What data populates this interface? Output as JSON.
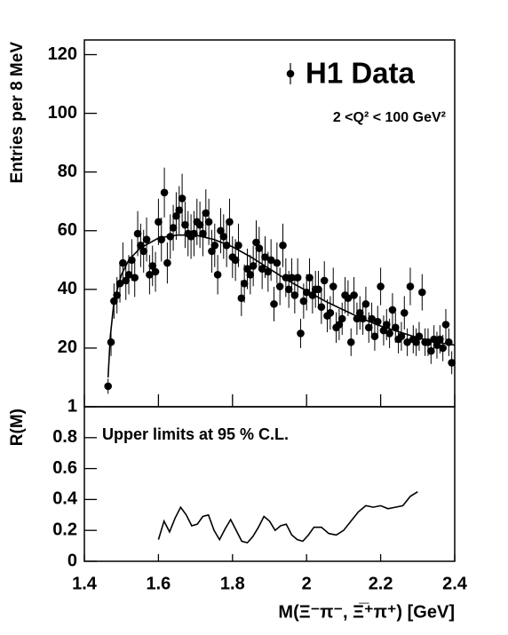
{
  "chart_data": [
    {
      "type": "scatter",
      "ylabel": "Entries per 8 MeV",
      "annotation": "2 <Q² < 100 GeV²",
      "legend": "top-right",
      "xlim": [
        1.4,
        2.4
      ],
      "xticks": [
        1.4,
        1.6,
        1.8,
        2,
        2.2,
        2.4
      ],
      "ylim": [
        0,
        125
      ],
      "yticks": [
        20,
        40,
        60,
        80,
        100,
        120
      ],
      "series": [
        {
          "name": "H1 Data",
          "color": "#000000",
          "x": [
            1.464,
            1.472,
            1.48,
            1.488,
            1.496,
            1.504,
            1.512,
            1.52,
            1.528,
            1.536,
            1.544,
            1.552,
            1.56,
            1.568,
            1.576,
            1.584,
            1.592,
            1.6,
            1.608,
            1.616,
            1.624,
            1.632,
            1.64,
            1.648,
            1.656,
            1.664,
            1.672,
            1.68,
            1.688,
            1.696,
            1.704,
            1.712,
            1.72,
            1.728,
            1.736,
            1.744,
            1.752,
            1.76,
            1.768,
            1.776,
            1.784,
            1.792,
            1.8,
            1.808,
            1.816,
            1.824,
            1.832,
            1.84,
            1.848,
            1.856,
            1.864,
            1.872,
            1.88,
            1.888,
            1.896,
            1.904,
            1.912,
            1.92,
            1.928,
            1.936,
            1.944,
            1.952,
            1.96,
            1.968,
            1.976,
            1.984,
            1.992,
            2.0,
            2.008,
            2.016,
            2.024,
            2.032,
            2.04,
            2.048,
            2.056,
            2.064,
            2.072,
            2.08,
            2.088,
            2.096,
            2.104,
            2.112,
            2.12,
            2.128,
            2.136,
            2.144,
            2.152,
            2.16,
            2.168,
            2.176,
            2.184,
            2.192,
            2.2,
            2.208,
            2.216,
            2.224,
            2.232,
            2.24,
            2.248,
            2.256,
            2.264,
            2.272,
            2.28,
            2.288,
            2.296,
            2.304,
            2.312,
            2.32,
            2.328,
            2.336,
            2.344,
            2.352,
            2.36,
            2.368,
            2.376,
            2.384,
            2.392
          ],
          "values": [
            7,
            22,
            36,
            38,
            42,
            49,
            43,
            45,
            50,
            44,
            59,
            55,
            53,
            57,
            45,
            48,
            46,
            63,
            57,
            73,
            49,
            58,
            61,
            65,
            67,
            71,
            62,
            59,
            58,
            59,
            63,
            62,
            59,
            66,
            63,
            53,
            55,
            45,
            60,
            58,
            55,
            63,
            51,
            50,
            55,
            37,
            42,
            47,
            45,
            48,
            56,
            54,
            47,
            51,
            46,
            50,
            35,
            49,
            41,
            55,
            44,
            40,
            44,
            38,
            44,
            25,
            36,
            39,
            44,
            38,
            40,
            40,
            34,
            43,
            31,
            32,
            41,
            27,
            28,
            30,
            38,
            37,
            22,
            38,
            30,
            32,
            30,
            35,
            27,
            30,
            24,
            29,
            41,
            26,
            28,
            25,
            33,
            27,
            23,
            24,
            32,
            22,
            41,
            23,
            22,
            24,
            39,
            22,
            22,
            19,
            23,
            21,
            23,
            20,
            28,
            22,
            15
          ],
          "errors": [
            2.6,
            4.7,
            6,
            6.2,
            6.5,
            7,
            6.6,
            6.7,
            7.1,
            6.6,
            7.7,
            7.4,
            7.3,
            7.5,
            6.7,
            6.9,
            6.8,
            7.9,
            7.5,
            8.5,
            7,
            7.6,
            7.8,
            8.1,
            8.2,
            8.4,
            7.9,
            7.7,
            7.6,
            7.7,
            7.9,
            7.9,
            7.7,
            8.1,
            7.9,
            7.3,
            7.4,
            6.7,
            7.7,
            7.6,
            7.4,
            7.9,
            7.1,
            7.1,
            7.4,
            6.1,
            6.5,
            6.9,
            6.7,
            6.9,
            7.5,
            7.3,
            6.9,
            7.1,
            6.8,
            7.1,
            5.9,
            7,
            6.4,
            7.4,
            6.6,
            6.3,
            6.6,
            6.2,
            6.6,
            5,
            6,
            6.2,
            6.6,
            6.2,
            6.3,
            6.3,
            5.8,
            6.6,
            5.6,
            5.7,
            6.4,
            5.2,
            5.3,
            5.5,
            6.2,
            6.1,
            4.7,
            6.2,
            5.5,
            5.7,
            5.5,
            5.9,
            5.2,
            5.5,
            4.9,
            5.4,
            6.4,
            5.1,
            5.3,
            5,
            5.7,
            5.2,
            4.8,
            4.9,
            5.7,
            4.7,
            6.4,
            4.8,
            4.7,
            4.9,
            6.2,
            4.7,
            4.7,
            4.4,
            4.8,
            4.6,
            4.8,
            4.5,
            5.3,
            4.7,
            3.9
          ]
        },
        {
          "color": "#000000",
          "x": [
            1.464,
            1.47,
            1.48,
            1.5,
            1.52,
            1.55,
            1.6,
            1.65,
            1.7,
            1.75,
            1.8,
            1.85,
            1.9,
            1.95,
            2.0,
            2.05,
            2.1,
            2.15,
            2.2,
            2.25,
            2.3,
            2.35,
            2.4
          ],
          "values": [
            10,
            24,
            36,
            45,
            50,
            54,
            57.5,
            58.5,
            58.5,
            57,
            54.5,
            51,
            47,
            43,
            39.5,
            36,
            33,
            30,
            27.5,
            25.5,
            23.5,
            22,
            21
          ]
        }
      ]
    },
    {
      "type": "line",
      "ylabel": "R(M)",
      "annotation": "Upper limits at 95 % C.L.",
      "xlabel": "M(Ξ⁻π⁻, Ξ̅⁺π⁺) [GeV]",
      "xlim": [
        1.4,
        2.4
      ],
      "xticks": [
        1.4,
        1.6,
        1.8,
        2,
        2.2,
        2.4
      ],
      "ylim": [
        0,
        1
      ],
      "yticks": [
        0,
        0.2,
        0.4,
        0.6,
        0.8,
        1
      ],
      "series": [
        {
          "color": "#000000",
          "x": [
            1.6,
            1.615,
            1.63,
            1.645,
            1.66,
            1.675,
            1.69,
            1.705,
            1.72,
            1.735,
            1.75,
            1.765,
            1.78,
            1.795,
            1.81,
            1.825,
            1.84,
            1.855,
            1.87,
            1.885,
            1.9,
            1.915,
            1.93,
            1.945,
            1.96,
            1.975,
            1.99,
            2.005,
            2.02,
            2.04,
            2.06,
            2.08,
            2.1,
            2.12,
            2.14,
            2.16,
            2.18,
            2.2,
            2.22,
            2.24,
            2.26,
            2.28,
            2.3
          ],
          "values": [
            0.14,
            0.26,
            0.19,
            0.28,
            0.35,
            0.3,
            0.23,
            0.24,
            0.29,
            0.3,
            0.2,
            0.14,
            0.21,
            0.27,
            0.2,
            0.13,
            0.12,
            0.16,
            0.22,
            0.29,
            0.26,
            0.2,
            0.23,
            0.24,
            0.17,
            0.14,
            0.13,
            0.17,
            0.22,
            0.22,
            0.18,
            0.17,
            0.2,
            0.26,
            0.32,
            0.36,
            0.35,
            0.36,
            0.34,
            0.35,
            0.36,
            0.42,
            0.45
          ]
        }
      ]
    }
  ]
}
